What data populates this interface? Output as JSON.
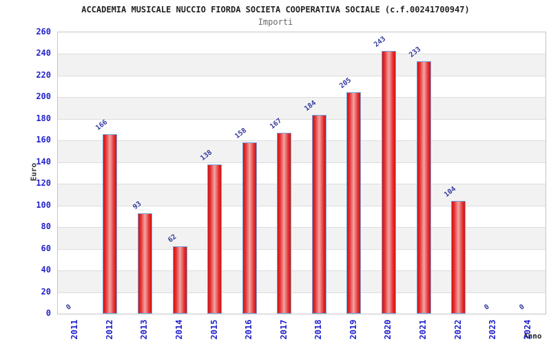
{
  "header": {
    "title": "ACCADEMIA MUSICALE NUCCIO FIORDA SOCIETA COOPERATIVA SOCIALE (c.f.00241700947)",
    "subtitle": "Importi"
  },
  "chart_data": {
    "type": "bar",
    "title": "ACCADEMIA MUSICALE NUCCIO FIORDA SOCIETA COOPERATIVA SOCIALE (c.f.00241700947)",
    "subtitle": "Importi",
    "xlabel": "Anno",
    "ylabel": "Euro",
    "categories": [
      "2011",
      "2012",
      "2013",
      "2014",
      "2015",
      "2016",
      "2017",
      "2018",
      "2019",
      "2020",
      "2021",
      "2022",
      "2023",
      "2024"
    ],
    "values": [
      0,
      166,
      93,
      62,
      138,
      158,
      167,
      184,
      205,
      243,
      233,
      104,
      0,
      0
    ],
    "ylim": [
      0,
      260
    ],
    "ytick_step": 20,
    "grid": "horizontal",
    "legend": "none",
    "colors": {
      "bar_edge": "#d90f0f",
      "bar_center": "#f3a4a4",
      "bar_border": "#6fa6e2",
      "tick_label": "#2222cc",
      "value_label": "#333a9e",
      "band_alt": "#f2f2f2",
      "gridline": "#dcdcdc",
      "frame": "#c4c4c4"
    }
  }
}
